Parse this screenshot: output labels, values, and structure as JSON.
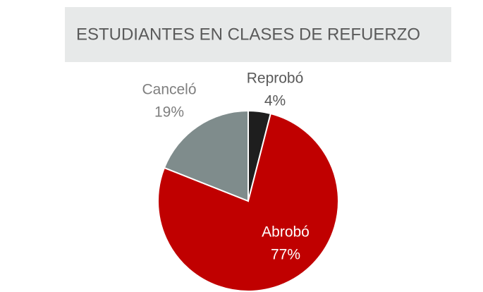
{
  "chart_data": {
    "type": "pie",
    "title": "ESTUDIANTES EN CLASES DE REFUERZO",
    "categories": [
      "Reprobó",
      "Abrobó",
      "Canceló"
    ],
    "values": [
      4,
      77,
      19
    ],
    "value_labels": [
      "4%",
      "77%",
      "19%"
    ],
    "colors": [
      "#1e1e1e",
      "#c00000",
      "#7f8c8c"
    ]
  }
}
